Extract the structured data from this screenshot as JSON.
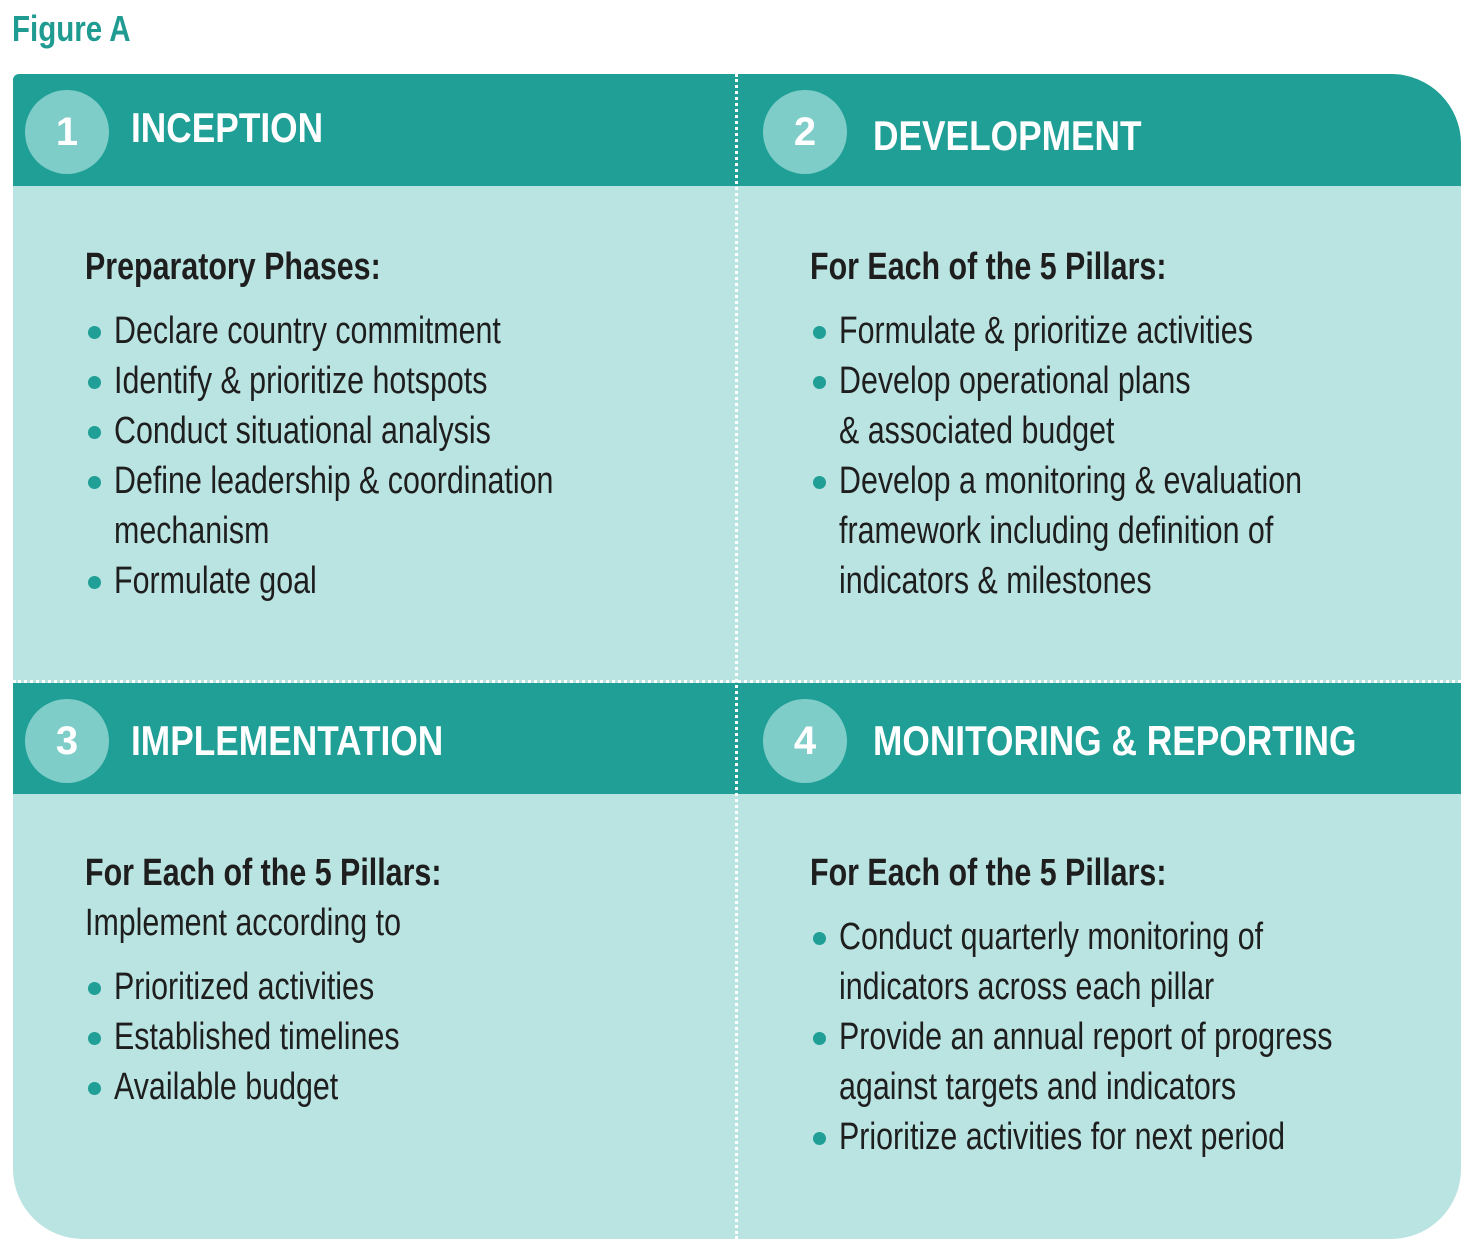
{
  "figure_label": "Figure A",
  "colors": {
    "band": "#1f9f95",
    "panel": "#bae4e2",
    "badge": "#7fcdc9",
    "title": "#1f9b91",
    "text": "#1e1e1e"
  },
  "quadrants": [
    {
      "number": "1",
      "title": "INCEPTION",
      "subtitle": "Preparatory Phases:",
      "intro": "",
      "items": [
        "Declare country commitment",
        "Identify & prioritize hotspots",
        "Conduct situational analysis",
        "Define leadership & coordination\nmechanism",
        "Formulate goal"
      ]
    },
    {
      "number": "2",
      "title": "DEVELOPMENT",
      "subtitle": "For Each of the 5 Pillars:",
      "intro": "",
      "items": [
        "Formulate & prioritize activities",
        "Develop operational plans\n& associated budget",
        "Develop a monitoring & evaluation\nframework including definition of\nindicators & milestones"
      ]
    },
    {
      "number": "3",
      "title": "IMPLEMENTATION",
      "subtitle": "For Each of the 5 Pillars:",
      "intro": "Implement according to",
      "items": [
        "Prioritized activities",
        "Established timelines",
        "Available budget"
      ]
    },
    {
      "number": "4",
      "title": "MONITORING  & REPORTING",
      "subtitle": "For Each of the 5 Pillars:",
      "intro": "",
      "items": [
        "Conduct quarterly monitoring of\nindicators across each pillar",
        "Provide an annual report of progress\nagainst targets and indicators",
        "Prioritize activities for next period"
      ]
    }
  ]
}
